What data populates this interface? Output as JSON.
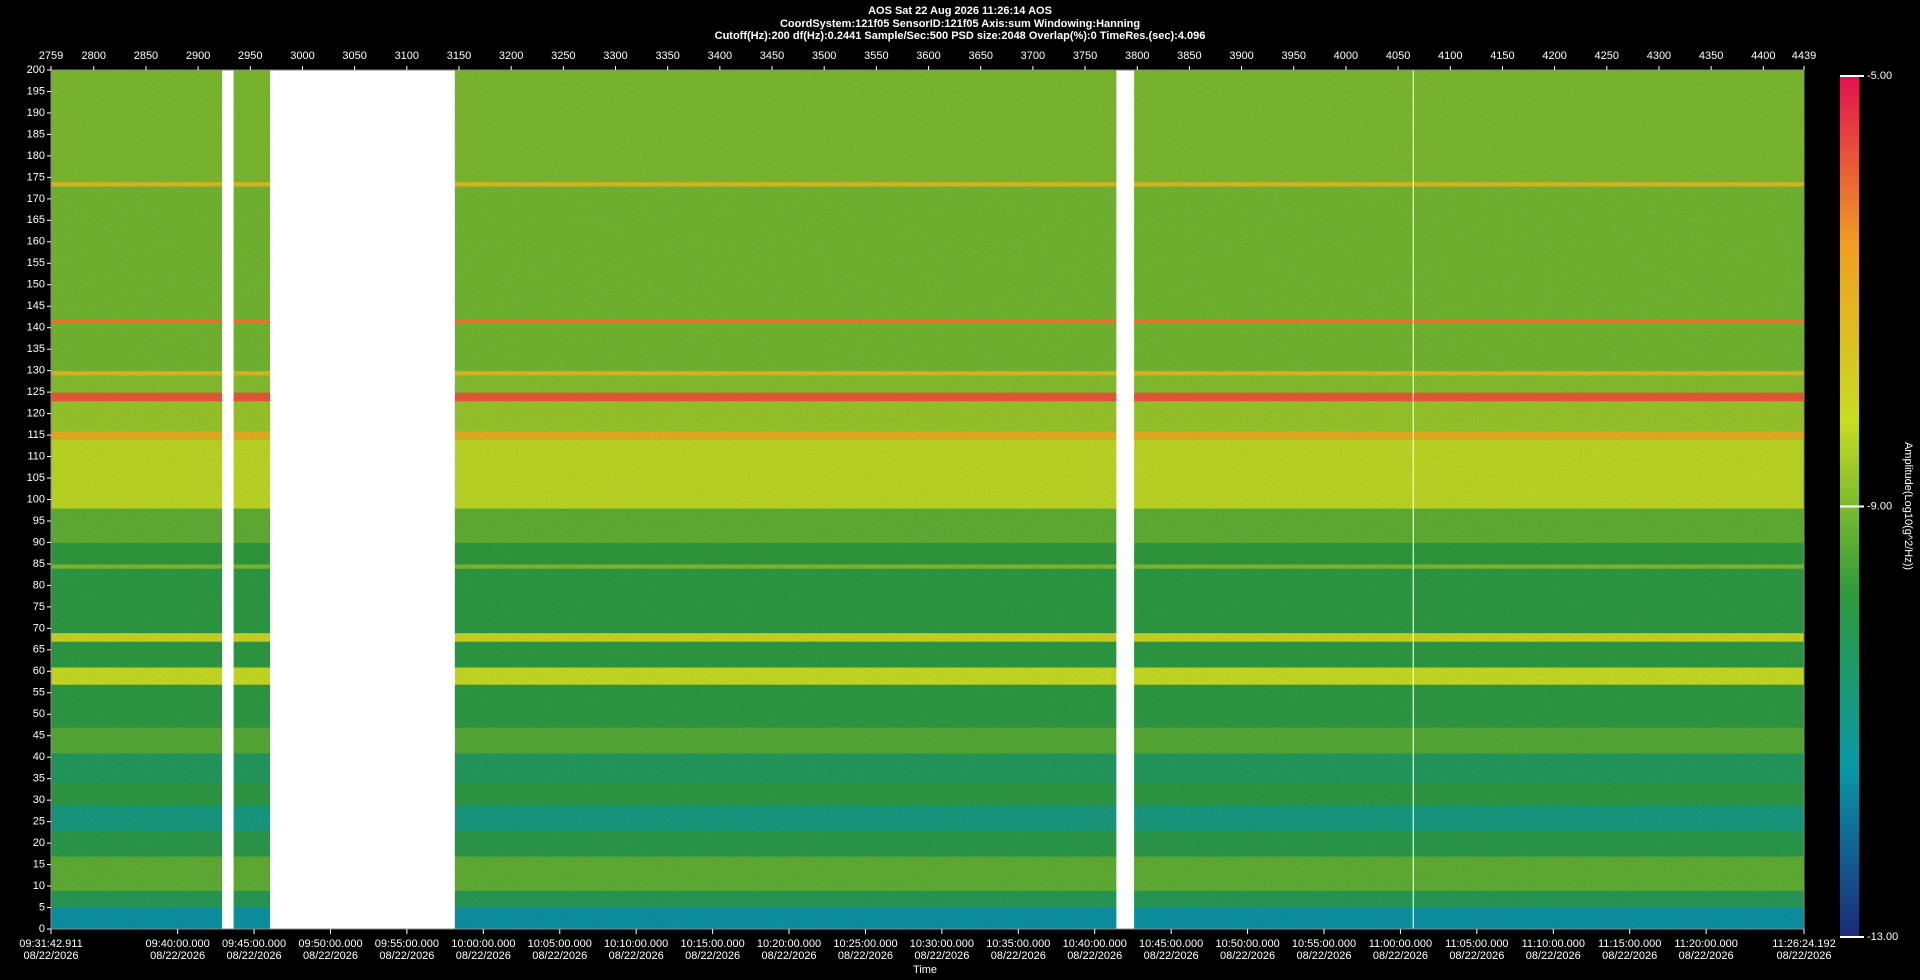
{
  "chart_data": {
    "type": "spectrogram",
    "title": "AOS  Sat 22 Aug 2026 11:26:14  AOS",
    "subtitle": "CoordSystem:121f05    SensorID:121f05     Axis:sum     Windowing:Hanning",
    "settings_line": "Cutoff(Hz):200      df(Hz):0.2441      Sample/Sec:500      PSD size:2048      Overlap(%):0      TimeRes.(sec):4.096",
    "xlabel": "Time",
    "colorbar_label": "Amplitude(Log10(g^2/Hz))",
    "xlim": [
      2759,
      4439
    ],
    "xticks": [
      2759,
      2800,
      2850,
      2900,
      2950,
      3000,
      3050,
      3100,
      3150,
      3200,
      3250,
      3300,
      3350,
      3400,
      3450,
      3500,
      3550,
      3600,
      3650,
      3700,
      3750,
      3800,
      3850,
      3900,
      3950,
      4000,
      4050,
      4100,
      4150,
      4200,
      4250,
      4300,
      4350,
      4400,
      4439
    ],
    "time_ticks": [
      {
        "value": 2759,
        "label": "09:31:42.911",
        "date": "08/22/2026"
      },
      {
        "value": 2880.36,
        "label": "09:40:00.000",
        "date": "08/22/2026"
      },
      {
        "value": 2953.6,
        "label": "09:45:00.000",
        "date": "08/22/2026"
      },
      {
        "value": 3026.85,
        "label": "09:50:00.000",
        "date": "08/22/2026"
      },
      {
        "value": 3100.09,
        "label": "09:55:00.000",
        "date": "08/22/2026"
      },
      {
        "value": 3173.33,
        "label": "10:00:00.000",
        "date": "08/22/2026"
      },
      {
        "value": 3246.57,
        "label": "10:05:00.000",
        "date": "08/22/2026"
      },
      {
        "value": 3319.81,
        "label": "10:10:00.000",
        "date": "08/22/2026"
      },
      {
        "value": 3393.06,
        "label": "10:15:00.000",
        "date": "08/22/2026"
      },
      {
        "value": 3466.3,
        "label": "10:20:00.000",
        "date": "08/22/2026"
      },
      {
        "value": 3539.54,
        "label": "10:25:00.000",
        "date": "08/22/2026"
      },
      {
        "value": 3612.78,
        "label": "10:30:00.000",
        "date": "08/22/2026"
      },
      {
        "value": 3686.03,
        "label": "10:35:00.000",
        "date": "08/22/2026"
      },
      {
        "value": 3759.27,
        "label": "10:40:00.000",
        "date": "08/22/2026"
      },
      {
        "value": 3832.51,
        "label": "10:45:00.000",
        "date": "08/22/2026"
      },
      {
        "value": 3905.75,
        "label": "10:50:00.000",
        "date": "08/22/2026"
      },
      {
        "value": 3978.99,
        "label": "10:55:00.000",
        "date": "08/22/2026"
      },
      {
        "value": 4052.24,
        "label": "11:00:00.000",
        "date": "08/22/2026"
      },
      {
        "value": 4125.48,
        "label": "11:05:00.000",
        "date": "08/22/2026"
      },
      {
        "value": 4198.72,
        "label": "11:10:00.000",
        "date": "08/22/2026"
      },
      {
        "value": 4271.96,
        "label": "11:15:00.000",
        "date": "08/22/2026"
      },
      {
        "value": 4345.2,
        "label": "11:20:00.000",
        "date": "08/22/2026"
      },
      {
        "value": 4439,
        "label": "11:26:24.192",
        "date": "08/22/2026"
      }
    ],
    "ylim": [
      0,
      200
    ],
    "yticks": [
      0,
      5,
      10,
      15,
      20,
      25,
      30,
      35,
      40,
      45,
      50,
      55,
      60,
      65,
      70,
      75,
      80,
      85,
      90,
      95,
      100,
      105,
      110,
      115,
      120,
      125,
      130,
      135,
      140,
      145,
      150,
      155,
      160,
      165,
      170,
      175,
      180,
      185,
      190,
      195,
      200
    ],
    "clim": [
      -13,
      -5
    ],
    "cticks": [
      {
        "value": -5,
        "label": "-5.00"
      },
      {
        "value": -9,
        "label": "-9.00"
      },
      {
        "value": -13,
        "label": "-13.00"
      }
    ],
    "colormap": [
      "#1b2a7a",
      "#0a9aa8",
      "#2f9a3c",
      "#c8dc22",
      "#f0a020",
      "#e3104f"
    ],
    "bands": [
      {
        "from": 0,
        "to": 5,
        "amplitude": -11.5
      },
      {
        "from": 5,
        "to": 9,
        "amplitude": -10.2
      },
      {
        "from": 9,
        "to": 17,
        "amplitude": -9.3
      },
      {
        "from": 17,
        "to": 23,
        "amplitude": -10
      },
      {
        "from": 23,
        "to": 29,
        "amplitude": -10.8
      },
      {
        "from": 29,
        "to": 34,
        "amplitude": -9.9
      },
      {
        "from": 34,
        "to": 41,
        "amplitude": -10.3
      },
      {
        "from": 41,
        "to": 47,
        "amplitude": -9.4
      },
      {
        "from": 47,
        "to": 57,
        "amplitude": -9.9
      },
      {
        "from": 57,
        "to": 61,
        "amplitude": -8.2
      },
      {
        "from": 61,
        "to": 67,
        "amplitude": -9.9
      },
      {
        "from": 67,
        "to": 69,
        "amplitude": -8
      },
      {
        "from": 69,
        "to": 84,
        "amplitude": -9.9
      },
      {
        "from": 84,
        "to": 85,
        "amplitude": -9
      },
      {
        "from": 85,
        "to": 90,
        "amplitude": -9.8
      },
      {
        "from": 90,
        "to": 98,
        "amplitude": -9.3
      },
      {
        "from": 98,
        "to": 114,
        "amplitude": -8.3
      },
      {
        "from": 114,
        "to": 116,
        "amplitude": -7
      },
      {
        "from": 116,
        "to": 123,
        "amplitude": -8.7
      },
      {
        "from": 123,
        "to": 125,
        "amplitude": -5.8
      },
      {
        "from": 125,
        "to": 129,
        "amplitude": -8.9
      },
      {
        "from": 129,
        "to": 130,
        "amplitude": -7.2
      },
      {
        "from": 130,
        "to": 141,
        "amplitude": -9.1
      },
      {
        "from": 141,
        "to": 142,
        "amplitude": -6.2
      },
      {
        "from": 142,
        "to": 173,
        "amplitude": -9.1
      },
      {
        "from": 173,
        "to": 174,
        "amplitude": -7.3
      },
      {
        "from": 174,
        "to": 200,
        "amplitude": -9
      }
    ],
    "gaps": [
      [
        2923,
        2934
      ],
      [
        2969,
        3146
      ],
      [
        3780,
        3797
      ],
      [
        4064,
        4065
      ]
    ],
    "gap_color": "#ffffff"
  }
}
